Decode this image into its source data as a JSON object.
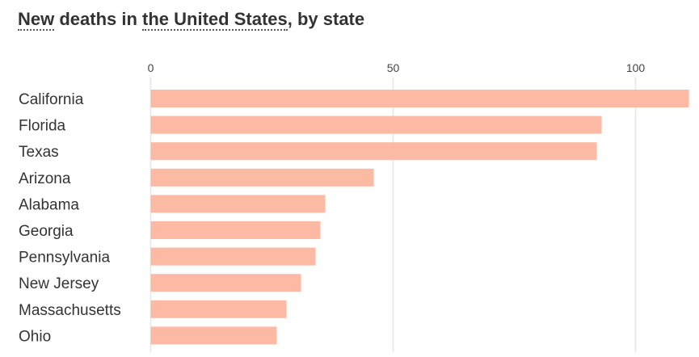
{
  "title": {
    "part1": "New",
    "part2": " deaths in ",
    "part3": "the United States",
    "part4": ", by state"
  },
  "chart_data": {
    "type": "bar",
    "orientation": "horizontal",
    "categories": [
      "California",
      "Florida",
      "Texas",
      "Arizona",
      "Alabama",
      "Georgia",
      "Pennsylvania",
      "New Jersey",
      "Massachusetts",
      "Ohio"
    ],
    "values": [
      111,
      93,
      92,
      46,
      36,
      35,
      34,
      31,
      28,
      26
    ],
    "xticks": [
      0,
      50,
      100
    ],
    "xlim": [
      0,
      111
    ],
    "grid": true,
    "bar_color": "#fcb9a4",
    "grid_color": "#e6e6e6"
  }
}
